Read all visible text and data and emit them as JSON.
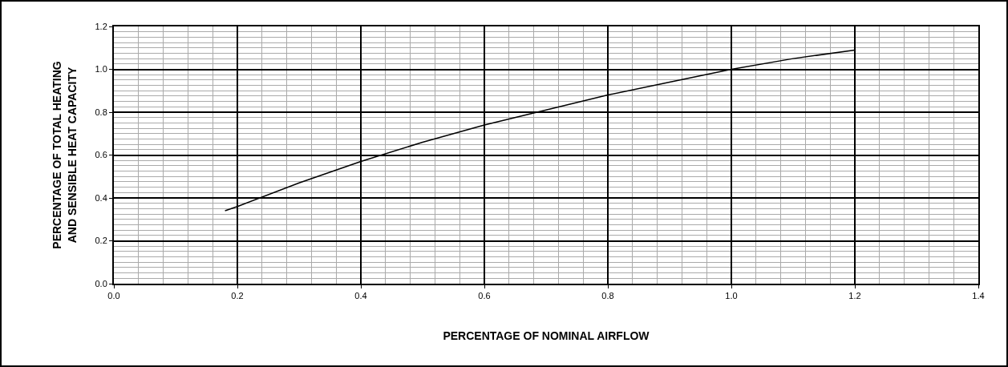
{
  "chart_data": {
    "type": "line",
    "xlabel": "PERCENTAGE OF NOMINAL AIRFLOW",
    "ylabel": "PERCENTAGE OF TOTAL HEATING\nAND SENSIBLE HEAT CAPACITY",
    "x": [
      0.18,
      0.2,
      0.3,
      0.4,
      0.5,
      0.6,
      0.7,
      0.8,
      0.9,
      1.0,
      1.1,
      1.2
    ],
    "series": [
      {
        "color": "#000000",
        "values": [
          0.34,
          0.36,
          0.47,
          0.57,
          0.66,
          0.74,
          0.81,
          0.88,
          0.94,
          1.0,
          1.05,
          1.09
        ]
      }
    ],
    "xlim": [
      0,
      1.4
    ],
    "xticks": [
      "0.0",
      0.2,
      0.4,
      0.6,
      0.8,
      "1.0",
      1.2,
      1.4
    ],
    "ylim": [
      0,
      1.2
    ],
    "yticks": [
      "0.0",
      0.2,
      0.4,
      0.6,
      0.8,
      "1.0",
      1.2
    ],
    "grid": true,
    "line_style": "solid"
  }
}
